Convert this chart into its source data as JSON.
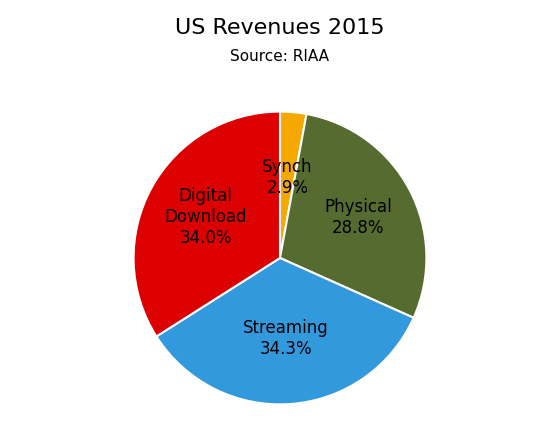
{
  "title": "US Revenues 2015",
  "subtitle": "Source: RIAA",
  "label_display": [
    "Synch\n2.9%",
    "Physical\n28.8%",
    "Streaming\n34.3%",
    "Digital\nDownload\n34.0%"
  ],
  "values": [
    2.9,
    28.8,
    34.3,
    34.0
  ],
  "colors": [
    "#f5a800",
    "#556b2f",
    "#3399dd",
    "#dd0000"
  ],
  "startangle": 90,
  "title_fontsize": 16,
  "subtitle_fontsize": 11,
  "label_fontsize": 12,
  "background_color": "#ffffff"
}
